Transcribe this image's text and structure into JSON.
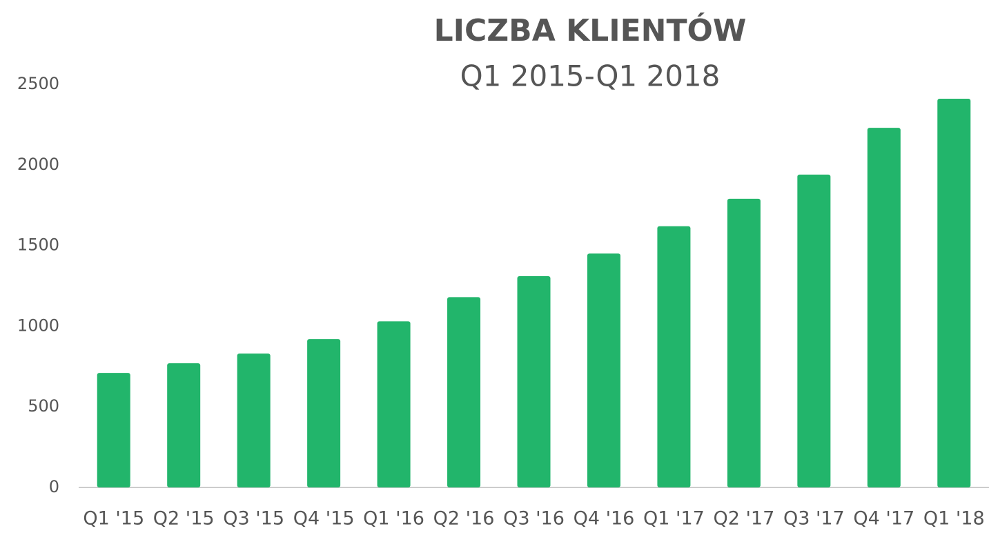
{
  "chart_data": {
    "type": "bar",
    "title": "LICZBA KLIENTÓW",
    "subtitle": "Q1 2015-Q1 2018",
    "categories": [
      "Q1 '15",
      "Q2 '15",
      "Q3 '15",
      "Q4 '15",
      "Q1 '16",
      "Q2 '16",
      "Q3 '16",
      "Q4 '16",
      "Q1 '17",
      "Q2 '17",
      "Q3 '17",
      "Q4 '17",
      "Q1 '18"
    ],
    "values": [
      710,
      770,
      830,
      920,
      1030,
      1180,
      1310,
      1450,
      1620,
      1790,
      1940,
      2230,
      2410
    ],
    "color": "#22b56b",
    "ylim": [
      0,
      2500
    ],
    "yticks": [
      0,
      500,
      1000,
      1500,
      2000,
      2500
    ],
    "grid": false
  }
}
